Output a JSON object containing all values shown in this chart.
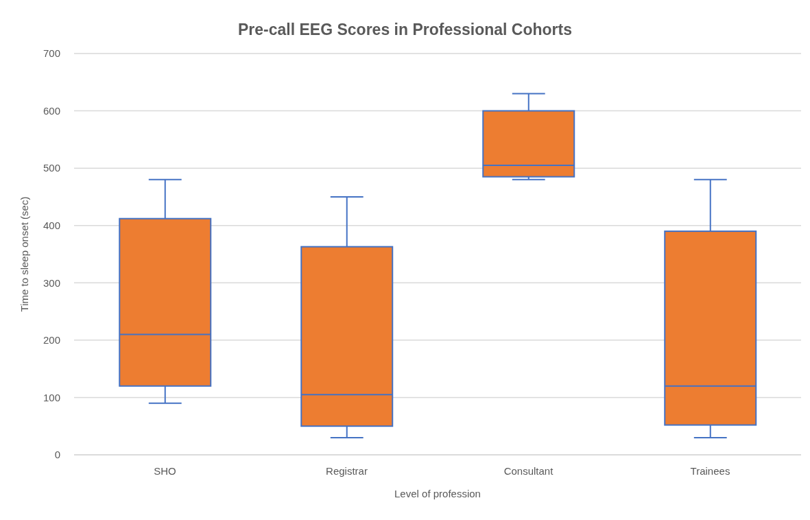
{
  "chart_data": {
    "type": "box",
    "title": "Pre-call EEG Scores in Professional Cohorts",
    "xlabel": "Level of profession",
    "ylabel": "Time to sleep onset (sec)",
    "categories": [
      "SHO",
      "Registrar",
      "Consultant",
      "Trainees"
    ],
    "series": [
      {
        "color": "#ed7d31",
        "boxes": [
          {
            "low": 90,
            "q1": 120,
            "median": 210,
            "q3": 412,
            "high": 480
          },
          {
            "low": 30,
            "q1": 50,
            "median": 105,
            "q3": 363,
            "high": 450
          },
          {
            "low": 480,
            "q1": 485,
            "median": 505,
            "q3": 600,
            "high": 630
          },
          {
            "low": 30,
            "q1": 52,
            "median": 120,
            "q3": 390,
            "high": 480
          }
        ]
      }
    ],
    "ylim": [
      0,
      700
    ],
    "yticks": [
      0,
      100,
      200,
      300,
      400,
      500,
      600,
      700
    ],
    "grid": "y"
  }
}
